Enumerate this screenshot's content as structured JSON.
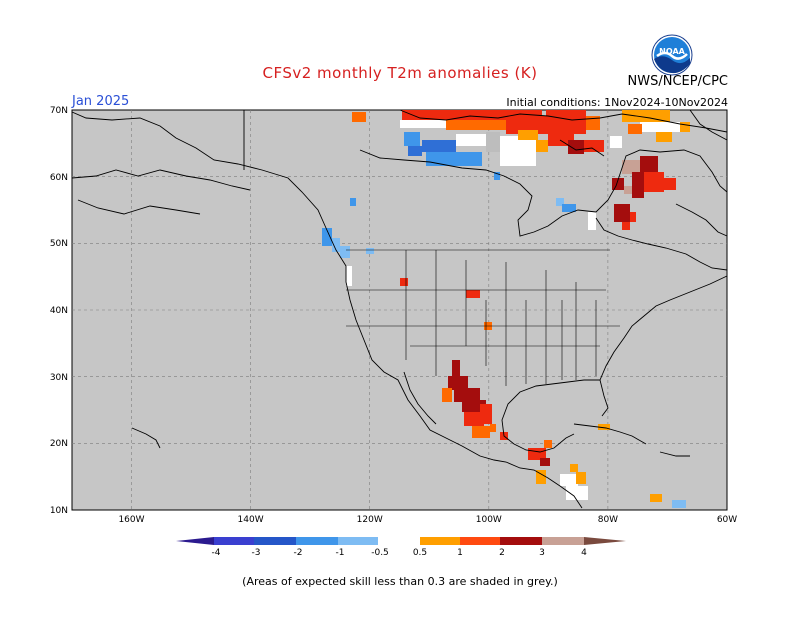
{
  "header": {
    "title": "CFSv2 monthly T2m anomalies (K)",
    "agency": "NWS/NCEP/CPC",
    "valid_month": "Jan 2025",
    "initial_conditions": "Initial conditions: 1Nov2024-10Nov2024",
    "logo_text": "NOAA"
  },
  "map": {
    "lat_labels": [
      "70N",
      "60N",
      "50N",
      "40N",
      "30N",
      "20N",
      "10N"
    ],
    "lon_labels": [
      "160W",
      "140W",
      "120W",
      "100W",
      "80W",
      "60W"
    ],
    "land_color": "#c6c6c6",
    "grid_style": "dashed",
    "note": ""
  },
  "colorbar": {
    "tick_labels": [
      "-4",
      "-3",
      "-2",
      "-1",
      "-0.5",
      "0.5",
      "1",
      "2",
      "3",
      "4"
    ],
    "colors": [
      "#2b1a8f",
      "#3a3fd0",
      "#2f6fd6",
      "#3f96ea",
      "#7ebcf3",
      "#ffffff",
      "#ff9f00",
      "#ff6a00",
      "#ee2a0f",
      "#a40d0d",
      "#c8a195",
      "#7a4a3e"
    ]
  },
  "footnote": "(Areas of expected skill less than 0.3 are shaded in grey.)"
}
